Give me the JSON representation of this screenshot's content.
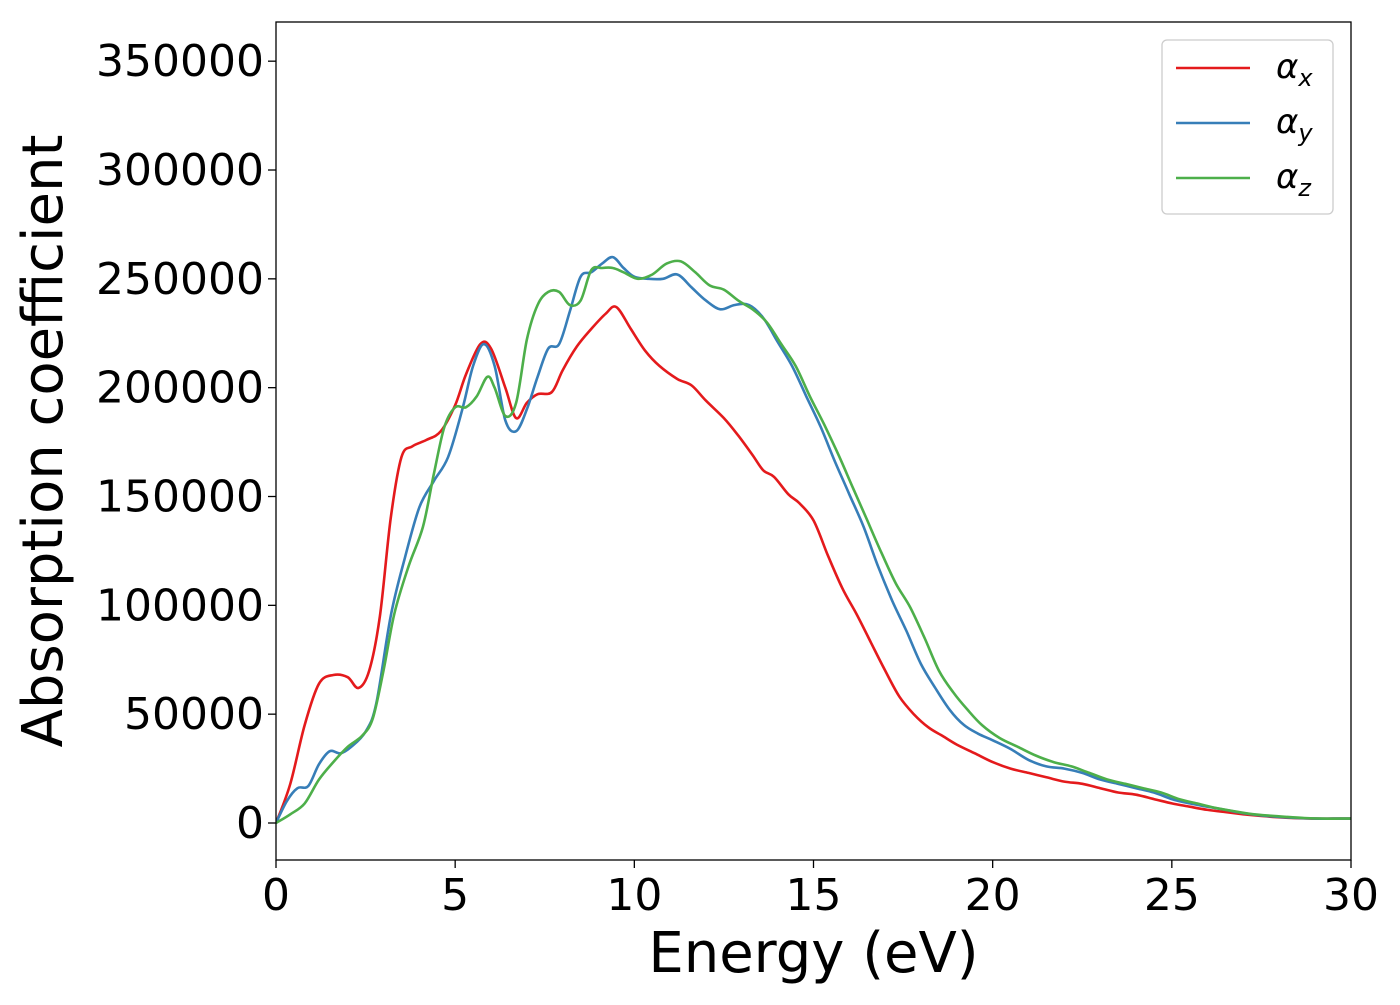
{
  "chart_data": {
    "type": "line",
    "xlabel": "Energy (eV)",
    "ylabel": "Absorption coefficient",
    "xlim": [
      0,
      30
    ],
    "ylim": [
      -17000,
      368000
    ],
    "xticks": [
      0,
      5,
      10,
      15,
      20,
      25,
      30
    ],
    "yticks": [
      0,
      50000,
      100000,
      150000,
      200000,
      250000,
      300000,
      350000
    ],
    "grid": false,
    "legend_position": "top-right",
    "series": [
      {
        "name": "α_x",
        "legend_symbol": "α",
        "legend_subscript": "x",
        "color": "#e41a1c",
        "x": [
          0,
          0.4,
          0.8,
          1.2,
          1.6,
          2.0,
          2.3,
          2.6,
          2.9,
          3.2,
          3.5,
          3.8,
          4.2,
          4.6,
          5.0,
          5.3,
          5.7,
          6.0,
          6.4,
          6.7,
          7.0,
          7.3,
          7.7,
          8.0,
          8.4,
          8.8,
          9.2,
          9.5,
          9.9,
          10.3,
          10.7,
          11.2,
          11.6,
          12.0,
          12.5,
          12.9,
          13.3,
          13.6,
          13.9,
          14.3,
          14.6,
          15.0,
          15.4,
          15.8,
          16.2,
          16.6,
          17.0,
          17.4,
          17.8,
          18.2,
          18.6,
          19.0,
          19.5,
          20.0,
          20.5,
          21.0,
          21.5,
          22.0,
          22.5,
          23.0,
          23.5,
          24.0,
          24.5,
          25.0,
          25.5,
          26.0,
          26.5,
          27.0,
          27.5,
          28.0,
          28.5,
          29.0,
          29.5,
          30.0
        ],
        "y": [
          0,
          18000,
          45000,
          64000,
          68000,
          67000,
          62000,
          70000,
          95000,
          140000,
          168000,
          173000,
          176000,
          180000,
          192000,
          206000,
          220000,
          218000,
          200000,
          186000,
          193000,
          197000,
          198000,
          208000,
          219000,
          227000,
          234000,
          237000,
          227000,
          217000,
          210000,
          204000,
          201000,
          194000,
          186000,
          178000,
          169000,
          162000,
          159000,
          151000,
          147000,
          139000,
          123000,
          108000,
          96000,
          83000,
          70000,
          58000,
          50000,
          44000,
          40000,
          36000,
          32000,
          28000,
          25000,
          23000,
          21000,
          19000,
          18000,
          16000,
          14000,
          13000,
          11000,
          9000,
          7500,
          6000,
          5000,
          4000,
          3200,
          2600,
          2200,
          2000,
          2000,
          2000
        ]
      },
      {
        "name": "α_y",
        "legend_symbol": "α",
        "legend_subscript": "y",
        "color": "#377eb8",
        "x": [
          0,
          0.3,
          0.6,
          0.9,
          1.2,
          1.5,
          1.8,
          2.1,
          2.5,
          2.8,
          3.2,
          3.6,
          4.0,
          4.4,
          4.8,
          5.2,
          5.5,
          5.8,
          6.1,
          6.4,
          6.7,
          7.0,
          7.3,
          7.6,
          7.9,
          8.2,
          8.5,
          8.8,
          9.1,
          9.4,
          9.7,
          10.0,
          10.4,
          10.8,
          11.2,
          11.6,
          12.0,
          12.4,
          12.8,
          13.2,
          13.6,
          14.0,
          14.4,
          14.8,
          15.2,
          15.6,
          16.0,
          16.4,
          16.8,
          17.2,
          17.6,
          18.0,
          18.4,
          18.8,
          19.2,
          19.6,
          20.0,
          20.5,
          21.0,
          21.5,
          22.0,
          22.5,
          23.0,
          23.5,
          24.0,
          24.5,
          25.0,
          25.5,
          26.0,
          26.5,
          27.0,
          27.5,
          28.0,
          28.5,
          29.0,
          29.5,
          30.0
        ],
        "y": [
          0,
          10000,
          16000,
          17000,
          27000,
          33000,
          32000,
          35000,
          42000,
          55000,
          95000,
          122000,
          145000,
          157000,
          168000,
          190000,
          210000,
          220000,
          210000,
          185000,
          180000,
          190000,
          205000,
          218000,
          220000,
          235000,
          251000,
          253000,
          257000,
          260000,
          255000,
          251000,
          250000,
          250000,
          252000,
          246000,
          240000,
          236000,
          238000,
          238000,
          232000,
          221000,
          210000,
          196000,
          182000,
          166000,
          151000,
          136000,
          118000,
          102000,
          88000,
          73000,
          62000,
          52000,
          45000,
          41000,
          38000,
          34000,
          29000,
          26000,
          25000,
          23000,
          20000,
          18000,
          16000,
          14000,
          11000,
          9000,
          7500,
          6000,
          4500,
          3500,
          2800,
          2300,
          2000,
          2000,
          2000
        ]
      },
      {
        "name": "α_z",
        "legend_symbol": "α",
        "legend_subscript": "z",
        "color": "#4daf4a",
        "x": [
          0,
          0.4,
          0.8,
          1.2,
          1.6,
          2.0,
          2.4,
          2.7,
          3.0,
          3.3,
          3.7,
          4.1,
          4.4,
          4.7,
          5.0,
          5.3,
          5.6,
          5.9,
          6.1,
          6.4,
          6.7,
          7.0,
          7.3,
          7.6,
          7.9,
          8.2,
          8.5,
          8.8,
          9.1,
          9.4,
          9.7,
          10.1,
          10.5,
          10.9,
          11.3,
          11.7,
          12.1,
          12.5,
          12.9,
          13.3,
          13.7,
          14.1,
          14.5,
          14.9,
          15.3,
          15.7,
          16.1,
          16.5,
          16.9,
          17.3,
          17.7,
          18.1,
          18.5,
          18.9,
          19.3,
          19.7,
          20.2,
          20.7,
          21.2,
          21.7,
          22.2,
          22.7,
          23.2,
          23.7,
          24.2,
          24.7,
          25.2,
          25.7,
          26.2,
          26.7,
          27.2,
          27.7,
          28.2,
          28.7,
          29.2,
          29.7,
          30.0
        ],
        "y": [
          0,
          4000,
          9000,
          20000,
          28000,
          35000,
          40000,
          48000,
          70000,
          96000,
          118000,
          136000,
          160000,
          182000,
          191000,
          191000,
          196000,
          205000,
          200000,
          187000,
          193000,
          222000,
          238000,
          244000,
          244000,
          238000,
          240000,
          254000,
          255000,
          255000,
          253000,
          250000,
          252000,
          257000,
          258000,
          253000,
          247000,
          245000,
          240000,
          236000,
          230000,
          220000,
          210000,
          196000,
          183000,
          169000,
          154000,
          139000,
          124000,
          110000,
          99000,
          85000,
          70000,
          60000,
          52000,
          45000,
          39000,
          35000,
          31000,
          28000,
          26000,
          23000,
          20000,
          18000,
          16000,
          14000,
          11000,
          9000,
          7000,
          5500,
          4200,
          3400,
          2800,
          2300,
          2000,
          2000,
          2000
        ]
      }
    ]
  }
}
